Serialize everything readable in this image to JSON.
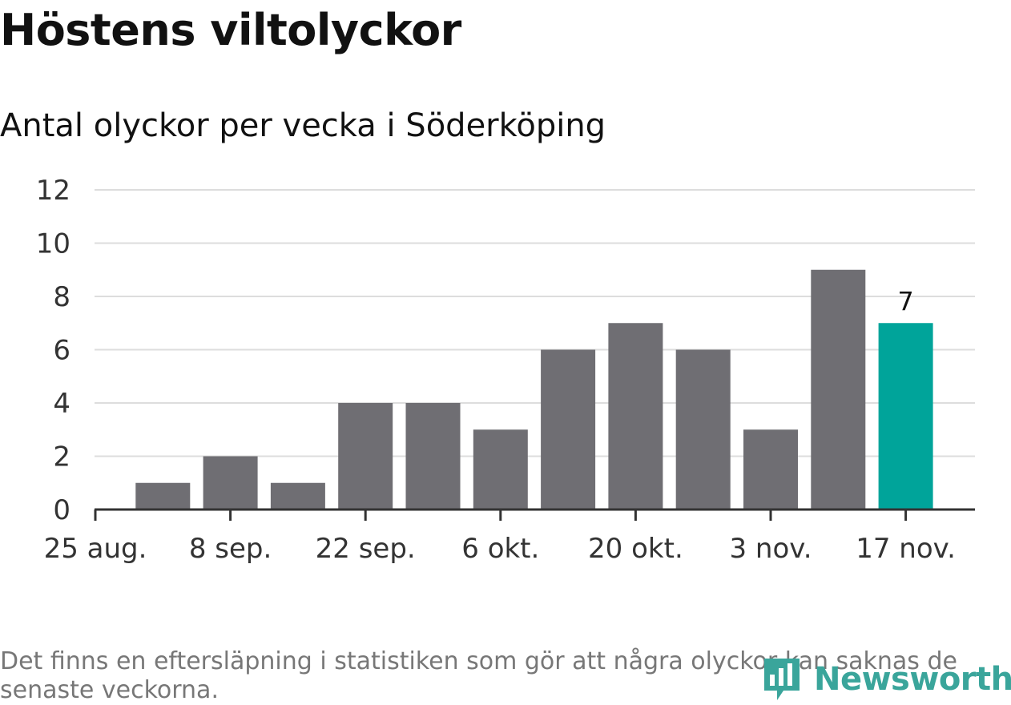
{
  "title": "Höstens viltolyckor",
  "subtitle": "Antal olyckor per vecka i Söderköping",
  "footnote": "Det finns en eftersläpning i statistiken som gör att några olyckor kan saknas de senaste veckorna.",
  "brand": {
    "name": "Newsworthy",
    "icon": "newsworthy-logo-icon",
    "color": "#3aa59b"
  },
  "chart_data": {
    "type": "bar",
    "x": [
      "1 sep.",
      "8 sep.",
      "15 sep.",
      "22 sep.",
      "29 sep.",
      "6 okt.",
      "13 okt.",
      "20 okt.",
      "27 okt.",
      "3 nov.",
      "10 nov.",
      "17 nov."
    ],
    "values": [
      1,
      2,
      1,
      4,
      4,
      3,
      6,
      7,
      6,
      3,
      9,
      7
    ],
    "x_tick_labels": [
      "25 aug.",
      "8 sep.",
      "22 sep.",
      "6 okt.",
      "20 okt.",
      "3 nov.",
      "17 nov."
    ],
    "y_ticks": [
      0,
      2,
      4,
      6,
      8,
      10,
      12
    ],
    "ylim": [
      0,
      12
    ],
    "grid": true,
    "highlight_index": 11,
    "highlight_label": "7",
    "colors": {
      "bar": "#6f6e73",
      "highlight": "#00a49a",
      "grid": "#dddddd",
      "axis": "#333333"
    }
  }
}
